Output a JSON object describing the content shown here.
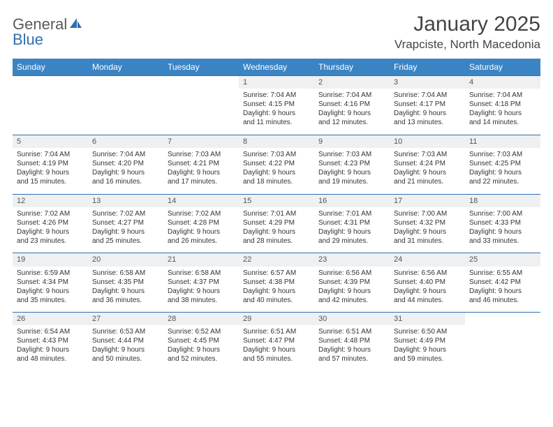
{
  "brand": {
    "part1": "General",
    "part2": "Blue"
  },
  "title": "January 2025",
  "location": "Vrapciste, North Macedonia",
  "colors": {
    "header_bg": "#3b84c4",
    "header_text": "#ffffff",
    "daynum_bg": "#eef0f2",
    "rule": "#2f6fb0",
    "text": "#333333"
  },
  "font": {
    "family": "Arial",
    "title_size": 30,
    "location_size": 17,
    "th_size": 12,
    "cell_size": 10
  },
  "weekdays": [
    "Sunday",
    "Monday",
    "Tuesday",
    "Wednesday",
    "Thursday",
    "Friday",
    "Saturday"
  ],
  "weeks": [
    [
      null,
      null,
      null,
      {
        "n": "1",
        "sr": "Sunrise: 7:04 AM",
        "ss": "Sunset: 4:15 PM",
        "d1": "Daylight: 9 hours",
        "d2": "and 11 minutes."
      },
      {
        "n": "2",
        "sr": "Sunrise: 7:04 AM",
        "ss": "Sunset: 4:16 PM",
        "d1": "Daylight: 9 hours",
        "d2": "and 12 minutes."
      },
      {
        "n": "3",
        "sr": "Sunrise: 7:04 AM",
        "ss": "Sunset: 4:17 PM",
        "d1": "Daylight: 9 hours",
        "d2": "and 13 minutes."
      },
      {
        "n": "4",
        "sr": "Sunrise: 7:04 AM",
        "ss": "Sunset: 4:18 PM",
        "d1": "Daylight: 9 hours",
        "d2": "and 14 minutes."
      }
    ],
    [
      {
        "n": "5",
        "sr": "Sunrise: 7:04 AM",
        "ss": "Sunset: 4:19 PM",
        "d1": "Daylight: 9 hours",
        "d2": "and 15 minutes."
      },
      {
        "n": "6",
        "sr": "Sunrise: 7:04 AM",
        "ss": "Sunset: 4:20 PM",
        "d1": "Daylight: 9 hours",
        "d2": "and 16 minutes."
      },
      {
        "n": "7",
        "sr": "Sunrise: 7:03 AM",
        "ss": "Sunset: 4:21 PM",
        "d1": "Daylight: 9 hours",
        "d2": "and 17 minutes."
      },
      {
        "n": "8",
        "sr": "Sunrise: 7:03 AM",
        "ss": "Sunset: 4:22 PM",
        "d1": "Daylight: 9 hours",
        "d2": "and 18 minutes."
      },
      {
        "n": "9",
        "sr": "Sunrise: 7:03 AM",
        "ss": "Sunset: 4:23 PM",
        "d1": "Daylight: 9 hours",
        "d2": "and 19 minutes."
      },
      {
        "n": "10",
        "sr": "Sunrise: 7:03 AM",
        "ss": "Sunset: 4:24 PM",
        "d1": "Daylight: 9 hours",
        "d2": "and 21 minutes."
      },
      {
        "n": "11",
        "sr": "Sunrise: 7:03 AM",
        "ss": "Sunset: 4:25 PM",
        "d1": "Daylight: 9 hours",
        "d2": "and 22 minutes."
      }
    ],
    [
      {
        "n": "12",
        "sr": "Sunrise: 7:02 AM",
        "ss": "Sunset: 4:26 PM",
        "d1": "Daylight: 9 hours",
        "d2": "and 23 minutes."
      },
      {
        "n": "13",
        "sr": "Sunrise: 7:02 AM",
        "ss": "Sunset: 4:27 PM",
        "d1": "Daylight: 9 hours",
        "d2": "and 25 minutes."
      },
      {
        "n": "14",
        "sr": "Sunrise: 7:02 AM",
        "ss": "Sunset: 4:28 PM",
        "d1": "Daylight: 9 hours",
        "d2": "and 26 minutes."
      },
      {
        "n": "15",
        "sr": "Sunrise: 7:01 AM",
        "ss": "Sunset: 4:29 PM",
        "d1": "Daylight: 9 hours",
        "d2": "and 28 minutes."
      },
      {
        "n": "16",
        "sr": "Sunrise: 7:01 AM",
        "ss": "Sunset: 4:31 PM",
        "d1": "Daylight: 9 hours",
        "d2": "and 29 minutes."
      },
      {
        "n": "17",
        "sr": "Sunrise: 7:00 AM",
        "ss": "Sunset: 4:32 PM",
        "d1": "Daylight: 9 hours",
        "d2": "and 31 minutes."
      },
      {
        "n": "18",
        "sr": "Sunrise: 7:00 AM",
        "ss": "Sunset: 4:33 PM",
        "d1": "Daylight: 9 hours",
        "d2": "and 33 minutes."
      }
    ],
    [
      {
        "n": "19",
        "sr": "Sunrise: 6:59 AM",
        "ss": "Sunset: 4:34 PM",
        "d1": "Daylight: 9 hours",
        "d2": "and 35 minutes."
      },
      {
        "n": "20",
        "sr": "Sunrise: 6:58 AM",
        "ss": "Sunset: 4:35 PM",
        "d1": "Daylight: 9 hours",
        "d2": "and 36 minutes."
      },
      {
        "n": "21",
        "sr": "Sunrise: 6:58 AM",
        "ss": "Sunset: 4:37 PM",
        "d1": "Daylight: 9 hours",
        "d2": "and 38 minutes."
      },
      {
        "n": "22",
        "sr": "Sunrise: 6:57 AM",
        "ss": "Sunset: 4:38 PM",
        "d1": "Daylight: 9 hours",
        "d2": "and 40 minutes."
      },
      {
        "n": "23",
        "sr": "Sunrise: 6:56 AM",
        "ss": "Sunset: 4:39 PM",
        "d1": "Daylight: 9 hours",
        "d2": "and 42 minutes."
      },
      {
        "n": "24",
        "sr": "Sunrise: 6:56 AM",
        "ss": "Sunset: 4:40 PM",
        "d1": "Daylight: 9 hours",
        "d2": "and 44 minutes."
      },
      {
        "n": "25",
        "sr": "Sunrise: 6:55 AM",
        "ss": "Sunset: 4:42 PM",
        "d1": "Daylight: 9 hours",
        "d2": "and 46 minutes."
      }
    ],
    [
      {
        "n": "26",
        "sr": "Sunrise: 6:54 AM",
        "ss": "Sunset: 4:43 PM",
        "d1": "Daylight: 9 hours",
        "d2": "and 48 minutes."
      },
      {
        "n": "27",
        "sr": "Sunrise: 6:53 AM",
        "ss": "Sunset: 4:44 PM",
        "d1": "Daylight: 9 hours",
        "d2": "and 50 minutes."
      },
      {
        "n": "28",
        "sr": "Sunrise: 6:52 AM",
        "ss": "Sunset: 4:45 PM",
        "d1": "Daylight: 9 hours",
        "d2": "and 52 minutes."
      },
      {
        "n": "29",
        "sr": "Sunrise: 6:51 AM",
        "ss": "Sunset: 4:47 PM",
        "d1": "Daylight: 9 hours",
        "d2": "and 55 minutes."
      },
      {
        "n": "30",
        "sr": "Sunrise: 6:51 AM",
        "ss": "Sunset: 4:48 PM",
        "d1": "Daylight: 9 hours",
        "d2": "and 57 minutes."
      },
      {
        "n": "31",
        "sr": "Sunrise: 6:50 AM",
        "ss": "Sunset: 4:49 PM",
        "d1": "Daylight: 9 hours",
        "d2": "and 59 minutes."
      },
      null
    ]
  ]
}
